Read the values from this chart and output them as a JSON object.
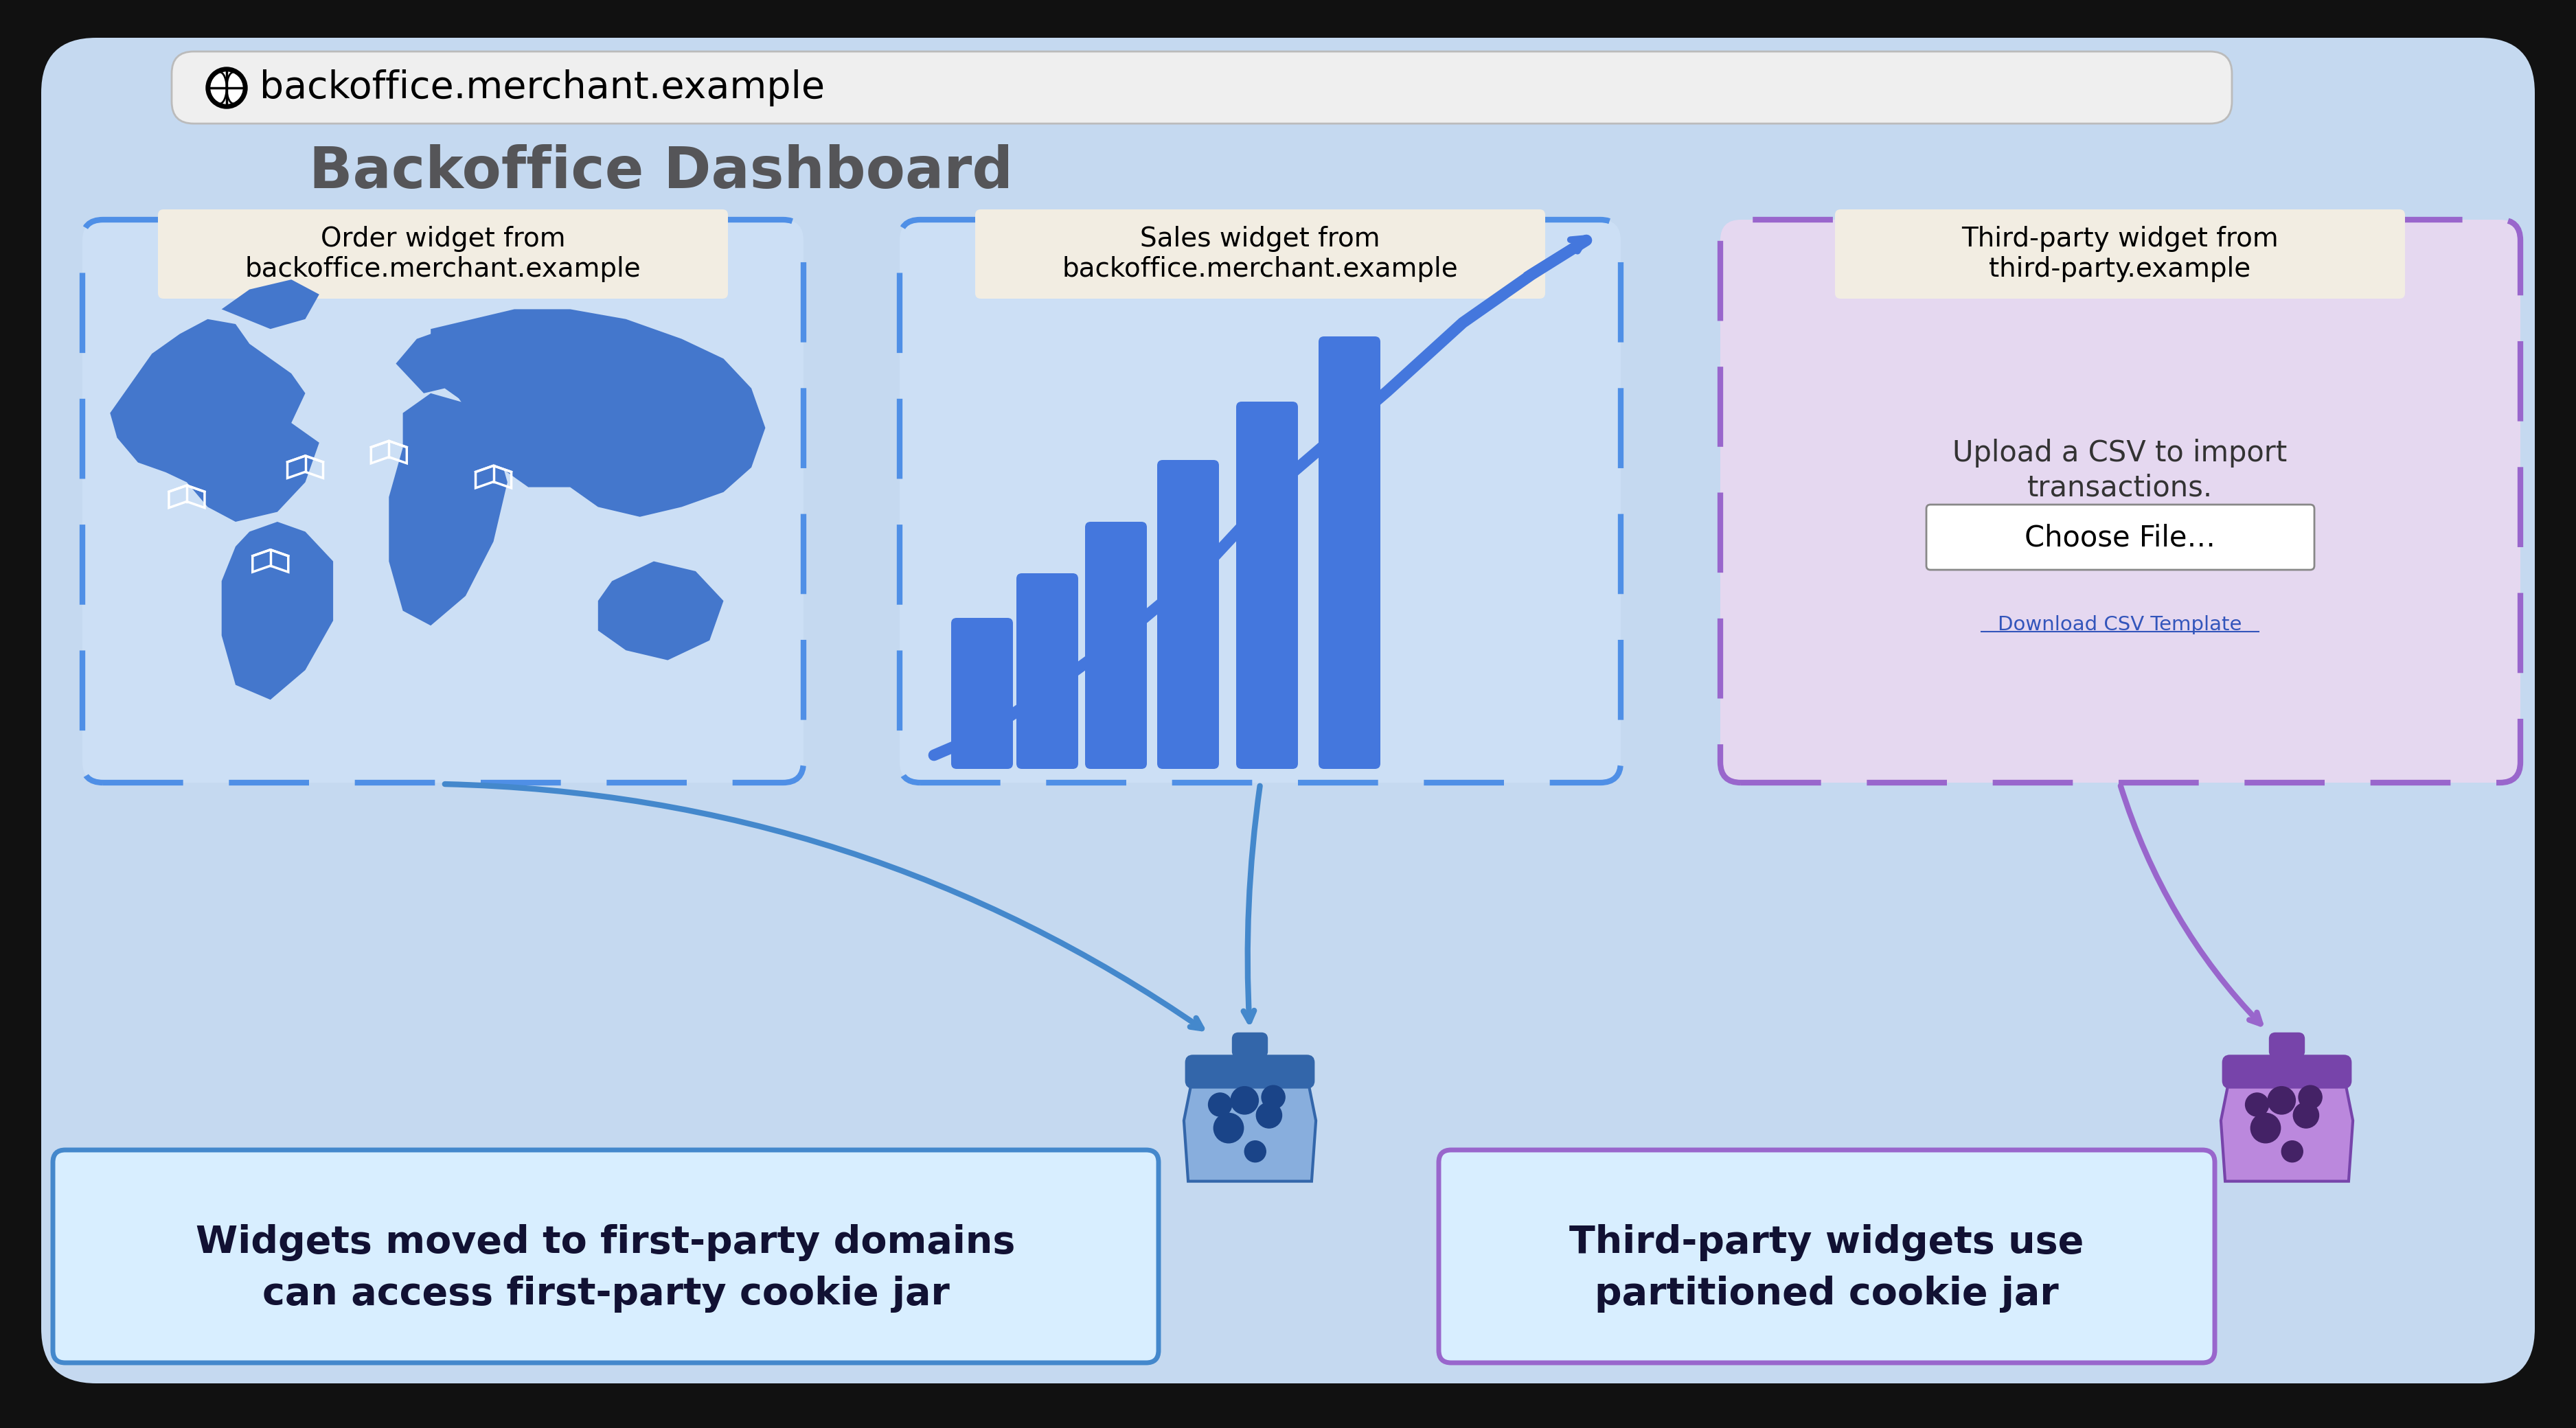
{
  "bg_outer": "#111111",
  "bg_browser": "#c5d9f0",
  "bg_url_bar": "#efefef",
  "url_text": "backoffice.merchant.example",
  "dashboard_title": "Backoffice Dashboard",
  "dashboard_title_color": "#555558",
  "widget1_label_line1": "Order widget from",
  "widget1_label_line2": "backoffice.merchant.example",
  "widget2_label_line1": "Sales widget from",
  "widget2_label_line2": "backoffice.merchant.example",
  "widget3_label_line1": "Third-party widget from",
  "widget3_label_line2": "third-party.example",
  "widget3_upload_line1": "Upload a CSV to import",
  "widget3_upload_line2": "transactions.",
  "widget3_button_text": "Choose File…",
  "widget3_link_text": "Download CSV Template",
  "widget_label_bg": "#f2ede2",
  "widget1_bg": "#ccdff5",
  "widget2_bg": "#ccdff5",
  "widget3_bg": "#e5d8f0",
  "widget1_border": "#4f8fe6",
  "widget2_border": "#4f8fe6",
  "widget3_border": "#9966cc",
  "blue_color": "#4477dd",
  "purple_color": "#8855bb",
  "arrow12_color": "#4488cc",
  "arrow3_color": "#9966cc",
  "bottom_box_bg": "#d8eeff",
  "bottom_box1_border": "#4488cc",
  "bottom_box2_border": "#9966cc",
  "bottom_text1_l1": "Widgets moved to first-party domains",
  "bottom_text1_l2": "can access first-party cookie jar",
  "bottom_text2_l1": "Third-party widgets use",
  "bottom_text2_l2": "partitioned cookie jar",
  "bottom_text_color": "#111133",
  "map_blue": "#4477cc",
  "map_bg_light": "#aaccee"
}
